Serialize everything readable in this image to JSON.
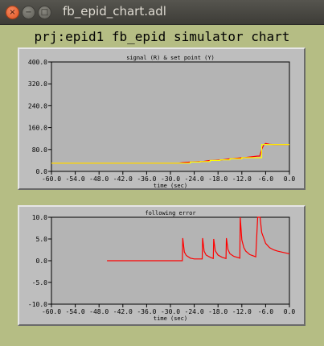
{
  "window": {
    "title": "fb_epid_chart.adl",
    "buttons": {
      "close": "×",
      "minimize": "−",
      "maximize": "□"
    }
  },
  "main_title": "prj:epid1 fb_epid simulator chart",
  "colors": {
    "background": "#b5bd84",
    "panel": "#bebebe",
    "plot": "#b4b4b4",
    "readback": "#ff0000",
    "setpoint": "#ffff00"
  },
  "chart_data": [
    {
      "type": "line",
      "title": "signal (R) & set point (Y)",
      "xlabel": "time (sec)",
      "ylabel": "",
      "xlim": [
        -60,
        0
      ],
      "ylim": [
        0,
        400
      ],
      "x_ticks": [
        "-60.0",
        "-54.0",
        "-48.0",
        "-42.0",
        "-36.0",
        "-30.0",
        "-24.0",
        "-18.0",
        "-12.0",
        "-6.0",
        "0.0"
      ],
      "y_ticks": [
        "400.0",
        "320.0",
        "240.0",
        "160.0",
        "80.0",
        "0.0"
      ],
      "series": [
        {
          "name": "R",
          "color": "#ff0000",
          "x": [
            -60,
            -28,
            -27,
            -24.9,
            -24.5,
            -22.5,
            -22,
            -20,
            -19.5,
            -17.5,
            -17,
            -15,
            -14.5,
            -12,
            -11.5,
            -8,
            -7.5,
            -7,
            -6.5,
            -6,
            -5,
            -4,
            0
          ],
          "y": [
            30,
            30,
            32,
            34,
            34,
            36,
            36,
            40,
            40,
            42,
            42,
            46,
            46,
            50,
            50,
            56,
            56,
            80,
            96,
            102,
            99,
            98,
            98
          ]
        },
        {
          "name": "Y",
          "color": "#ffff00",
          "x": [
            -60,
            -25,
            -25,
            -22.5,
            -22.5,
            -20,
            -20,
            -17.5,
            -17.5,
            -15,
            -15,
            -12,
            -12,
            -7,
            -7,
            0
          ],
          "y": [
            30,
            30,
            34,
            34,
            36,
            36,
            40,
            40,
            42,
            42,
            46,
            46,
            50,
            50,
            98,
            98
          ]
        }
      ]
    },
    {
      "type": "line",
      "title": "following error",
      "xlabel": "time (sec)",
      "ylabel": "",
      "xlim": [
        -60,
        0
      ],
      "ylim": [
        -10,
        10
      ],
      "x_ticks": [
        "-60.0",
        "-54.0",
        "-48.0",
        "-42.0",
        "-36.0",
        "-30.0",
        "-24.0",
        "-18.0",
        "-12.0",
        "-6.0",
        "0.0"
      ],
      "y_ticks": [
        "10.0",
        "5.0",
        "0.0",
        "-5.0",
        "-10.0"
      ],
      "series": [
        {
          "name": "error",
          "color": "#ff0000",
          "x": [
            -46,
            -27,
            -26.9,
            -26.5,
            -26,
            -25,
            -24,
            -22,
            -21.9,
            -21.5,
            -21,
            -20,
            -19.2,
            -19.1,
            -18.7,
            -18,
            -17,
            -16,
            -15.9,
            -15.5,
            -15,
            -14,
            -12.5,
            -12.4,
            -12,
            -11.5,
            -11,
            -10,
            -8.5,
            -8,
            -7.4,
            -7,
            -6,
            -5,
            -4,
            -3,
            -2,
            -1,
            0
          ],
          "y": [
            0,
            0,
            5.2,
            2.0,
            1.2,
            0.6,
            0.4,
            0.4,
            5.2,
            2.2,
            1.3,
            0.8,
            0.5,
            5.0,
            2.3,
            1.3,
            0.8,
            0.5,
            5.2,
            2.6,
            1.6,
            1.0,
            0.6,
            10,
            4.8,
            3.0,
            2.2,
            1.4,
            0.9,
            10,
            10,
            6.5,
            4.0,
            3.0,
            2.5,
            2.2,
            2.0,
            1.8,
            1.6
          ]
        }
      ]
    }
  ]
}
